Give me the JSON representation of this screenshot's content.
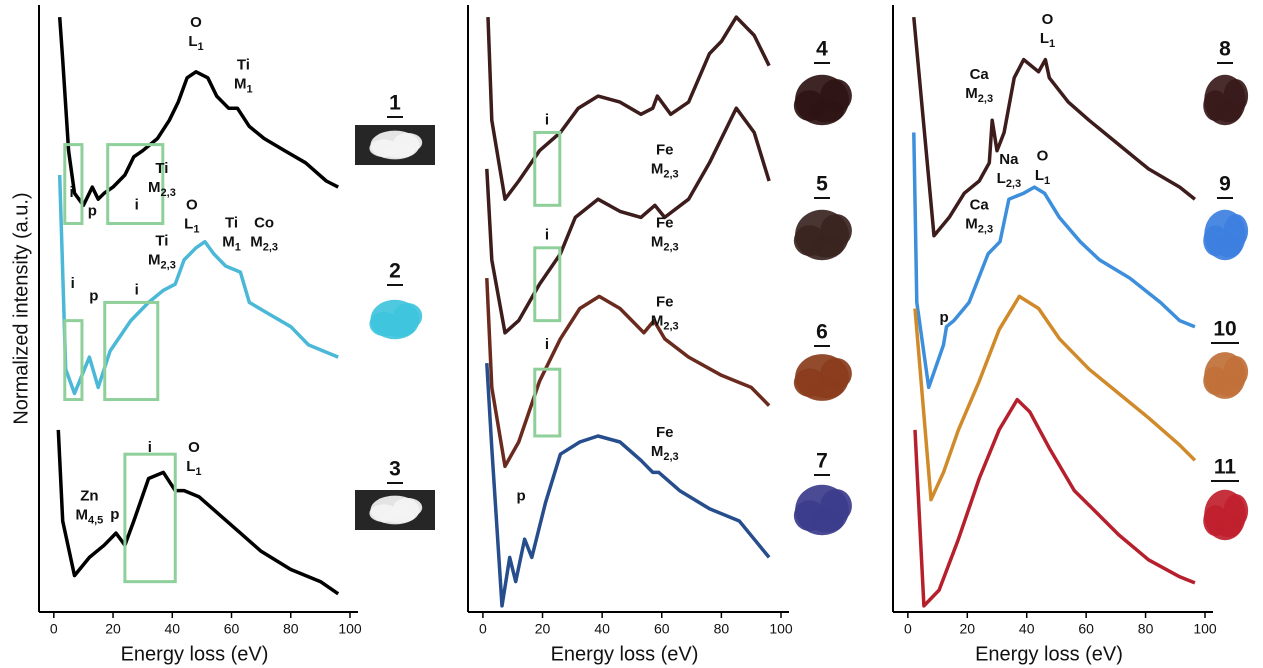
{
  "chart_data": [
    {
      "type": "line",
      "x_label": "Energy loss (eV)",
      "y_label": "Normalized intensity (a.u.)",
      "xlim": [
        -5,
        100
      ],
      "ylim": [
        0,
        100
      ],
      "xticks": [
        0,
        20,
        40,
        60,
        80,
        100
      ],
      "series": [
        {
          "color": "#000000",
          "x": [
            2,
            3,
            5,
            7,
            10,
            13,
            15,
            17,
            20,
            24,
            27,
            30,
            35,
            39,
            42,
            45,
            48,
            52,
            55,
            59,
            62,
            66,
            71,
            78,
            85,
            92,
            96
          ],
          "values": [
            98,
            91,
            76,
            69,
            67,
            70,
            68,
            69,
            70,
            72,
            75,
            76,
            78,
            81,
            84,
            88,
            89,
            88,
            85,
            83,
            83,
            80,
            78,
            76,
            74,
            71,
            70
          ]
        },
        {
          "color": "#4ab8d6",
          "x": [
            2,
            4,
            7,
            12,
            15,
            19,
            26,
            32,
            37,
            41,
            44,
            48,
            51,
            54,
            58,
            63,
            66,
            73,
            80,
            86,
            96
          ],
          "values": [
            72,
            40,
            36,
            42,
            37,
            43,
            48,
            51,
            53,
            54,
            58,
            60,
            61,
            59,
            57,
            56,
            51,
            49,
            47,
            44,
            42
          ]
        },
        {
          "color": "#000000",
          "x": [
            1.5,
            3,
            7,
            12,
            17,
            21,
            24,
            27,
            32,
            37,
            41,
            44,
            49,
            56,
            63,
            70,
            80,
            90,
            96
          ],
          "values": [
            30,
            15,
            6,
            9,
            11,
            13,
            11,
            15,
            22,
            23,
            20,
            20,
            19,
            16,
            13,
            10,
            7,
            5,
            3
          ]
        }
      ],
      "regions": [
        {
          "x": [
            3.7,
            9.5
          ],
          "y": [
            64,
            77
          ]
        },
        {
          "x": [
            18.2,
            36.8
          ],
          "y": [
            64,
            77
          ]
        },
        {
          "x": [
            3.7,
            9.5
          ],
          "y": [
            35,
            48
          ]
        },
        {
          "x": [
            17.2,
            35.1
          ],
          "y": [
            35,
            51
          ]
        },
        {
          "x": [
            24,
            41
          ],
          "y": [
            5,
            26
          ]
        }
      ],
      "annotations": [
        {
          "label": "i",
          "x": 6,
          "y": 69
        },
        {
          "label": "p",
          "x": 13,
          "y": 66
        },
        {
          "label": "i",
          "x": 28,
          "y": 67
        },
        {
          "label": "Ti",
          "edge": "M",
          "sub": "2,3",
          "x": 36.5,
          "y": 73
        },
        {
          "label": "O",
          "edge": "L",
          "sub": "1",
          "x": 48,
          "y": 97
        },
        {
          "label": "Ti",
          "edge": "M",
          "sub": "1",
          "x": 64,
          "y": 90
        },
        {
          "label": "i",
          "x": 6.4,
          "y": 54
        },
        {
          "label": "p",
          "x": 13.5,
          "y": 52
        },
        {
          "label": "i",
          "x": 28,
          "y": 53
        },
        {
          "label": "Ti",
          "edge": "M",
          "sub": "2,3",
          "x": 36.5,
          "y": 61
        },
        {
          "label": "O",
          "edge": "L",
          "sub": "1",
          "x": 46.6,
          "y": 67
        },
        {
          "label": "Ti",
          "edge": "M",
          "sub": "1",
          "x": 60,
          "y": 64
        },
        {
          "label": "Co",
          "edge": "M",
          "sub": "2,3",
          "x": 71,
          "y": 64
        },
        {
          "label": "Zn",
          "edge": "M",
          "sub": "4,5",
          "x": 12,
          "y": 19
        },
        {
          "label": "p",
          "x": 20.6,
          "y": 16
        },
        {
          "label": "i",
          "x": 32.4,
          "y": 27
        },
        {
          "label": "O",
          "edge": "L",
          "sub": "1",
          "x": 47.3,
          "y": 27
        }
      ],
      "samples": [
        {
          "label": "1",
          "swatch": "#f4f4f4",
          "background": "#262626"
        },
        {
          "label": "2",
          "swatch": "#3fc4dd"
        },
        {
          "label": "3",
          "swatch": "#f4f4f4",
          "background": "#262626"
        }
      ]
    },
    {
      "type": "line",
      "x_label": "Energy loss (eV)",
      "xlim": [
        -5,
        100
      ],
      "ylim": [
        0,
        100
      ],
      "xticks": [
        0,
        20,
        40,
        60,
        80,
        100
      ],
      "series": [
        {
          "color": "#3d1c1c",
          "x": [
            1.7,
            3,
            7.4,
            12,
            19,
            26,
            32,
            38.6,
            46,
            53,
            57,
            58.5,
            63,
            69,
            76,
            80,
            85,
            91,
            96
          ],
          "values": [
            98,
            81,
            68,
            71,
            76,
            79,
            83,
            85,
            84,
            82,
            83,
            85,
            82,
            84,
            92,
            94,
            98,
            95,
            90
          ]
        },
        {
          "color": "#3d1c1c",
          "x": [
            1.3,
            3,
            7.4,
            12,
            19,
            26,
            31,
            38.6,
            46,
            53,
            57.7,
            61,
            69,
            76,
            85,
            91,
            96
          ],
          "values": [
            73,
            58,
            46,
            48,
            54,
            59,
            65,
            68,
            66,
            65,
            67,
            65,
            68,
            74,
            83,
            79,
            71
          ]
        },
        {
          "color": "#6b2a1e",
          "x": [
            1.3,
            3,
            7.4,
            12,
            19,
            26,
            32.5,
            39,
            46,
            54,
            57.4,
            61,
            69,
            80,
            90,
            96
          ],
          "values": [
            55,
            37,
            24,
            28,
            38,
            45,
            50,
            52,
            50,
            46,
            48,
            45,
            42,
            39,
            37,
            34
          ]
        },
        {
          "color": "#264d8c",
          "x": [
            1.3,
            3,
            6.4,
            9,
            11,
            14,
            16.4,
            21,
            26,
            32.5,
            38.6,
            46,
            53,
            57,
            59,
            66,
            76,
            86,
            91,
            96
          ],
          "values": [
            41,
            27,
            1,
            9,
            5,
            12,
            9,
            18,
            26,
            28,
            29,
            28,
            25,
            23,
            23,
            20,
            17,
            15,
            12,
            9
          ]
        }
      ],
      "regions": [
        {
          "x": [
            17.4,
            25.8
          ],
          "y": [
            67,
            79
          ]
        },
        {
          "x": [
            17.4,
            25.8
          ],
          "y": [
            48,
            60
          ]
        },
        {
          "x": [
            17.4,
            25.8
          ],
          "y": [
            29,
            40
          ]
        }
      ],
      "annotations": [
        {
          "label": "Fe",
          "edge": "M",
          "sub": "2,3",
          "x": 61,
          "y": 76
        },
        {
          "label": "i",
          "x": 21.5,
          "y": 81
        },
        {
          "label": "Fe",
          "edge": "M",
          "sub": "2,3",
          "x": 61,
          "y": 64
        },
        {
          "label": "i",
          "x": 21.5,
          "y": 62
        },
        {
          "label": "Fe",
          "edge": "M",
          "sub": "2,3",
          "x": 61,
          "y": 51
        },
        {
          "label": "i",
          "x": 21.5,
          "y": 44
        },
        {
          "label": "Fe",
          "edge": "M",
          "sub": "2,3",
          "x": 61,
          "y": 29.5
        },
        {
          "label": "p",
          "x": 12.8,
          "y": 19
        }
      ],
      "samples": [
        {
          "label": "4",
          "swatch": "#2e1414"
        },
        {
          "label": "5",
          "swatch": "#3a2420"
        },
        {
          "label": "6",
          "swatch": "#8a3c1c"
        },
        {
          "label": "7",
          "swatch": "#3c3c8c"
        }
      ]
    },
    {
      "type": "line",
      "x_label": "Energy loss (eV)",
      "xlim": [
        -5,
        100
      ],
      "ylim": [
        0,
        100
      ],
      "xticks": [
        0,
        20,
        40,
        60,
        80,
        100
      ],
      "series": [
        {
          "color": "#3d1c1c",
          "x": [
            2,
            8.8,
            13.9,
            19,
            24,
            27.4,
            28.4,
            30,
            32.4,
            35.8,
            39,
            44,
            46.3,
            47.6,
            54,
            61,
            71,
            81,
            91.5,
            96.6
          ],
          "values": [
            98,
            62,
            65,
            69,
            71,
            74,
            81,
            76,
            79,
            88,
            91,
            89,
            91,
            88,
            84,
            81,
            77,
            73,
            70,
            68
          ]
        },
        {
          "color": "#3d8fdc",
          "x": [
            2,
            3,
            7,
            12,
            13,
            15.5,
            20.6,
            27,
            31,
            34,
            39,
            42.6,
            46,
            51,
            58,
            64.5,
            74.7,
            85,
            91.5,
            96.6
          ],
          "values": [
            79,
            51,
            37,
            44,
            47,
            48,
            51,
            59,
            61,
            68,
            69,
            70,
            69,
            65,
            61,
            58,
            55,
            51,
            48,
            47
          ]
        },
        {
          "color": "#d08a2a",
          "x": [
            2.4,
            7.8,
            12,
            17,
            24,
            30.7,
            37.5,
            44,
            51,
            61,
            71,
            81,
            91.5,
            96.6
          ],
          "values": [
            50,
            18.5,
            23,
            30,
            38,
            46.5,
            52,
            50,
            45,
            40,
            36,
            32,
            27.5,
            25
          ]
        },
        {
          "color": "#b5202c",
          "x": [
            2.4,
            5.4,
            10.5,
            17,
            24,
            30.7,
            36.8,
            41,
            47.6,
            56,
            61,
            71,
            81,
            91.5,
            96.6
          ],
          "values": [
            30,
            1,
            3.6,
            12,
            22,
            30,
            35,
            33,
            27,
            20,
            17.6,
            12.7,
            8.6,
            5.8,
            4.8
          ]
        }
      ],
      "regions": [],
      "annotations": [
        {
          "label": "Ca",
          "edge": "M",
          "sub": "2,3",
          "x": 24,
          "y": 88.5
        },
        {
          "label": "O",
          "edge": "L",
          "sub": "1",
          "x": 47,
          "y": 97.5
        },
        {
          "label": "Na",
          "edge": "L",
          "sub": "2,3",
          "x": 34,
          "y": 74.5
        },
        {
          "label": "O",
          "edge": "L",
          "sub": "1",
          "x": 45.3,
          "y": 75
        },
        {
          "label": "Ca",
          "edge": "M",
          "sub": "2,3",
          "x": 24,
          "y": 67
        },
        {
          "label": "p",
          "x": 12.2,
          "y": 48.4
        }
      ],
      "samples": [
        {
          "label": "8",
          "swatch": "#3a1a1a"
        },
        {
          "label": "9",
          "swatch": "#3d7fe0"
        },
        {
          "label": "10",
          "swatch": "#c07038"
        },
        {
          "label": "11",
          "swatch": "#c0202c"
        }
      ]
    }
  ]
}
